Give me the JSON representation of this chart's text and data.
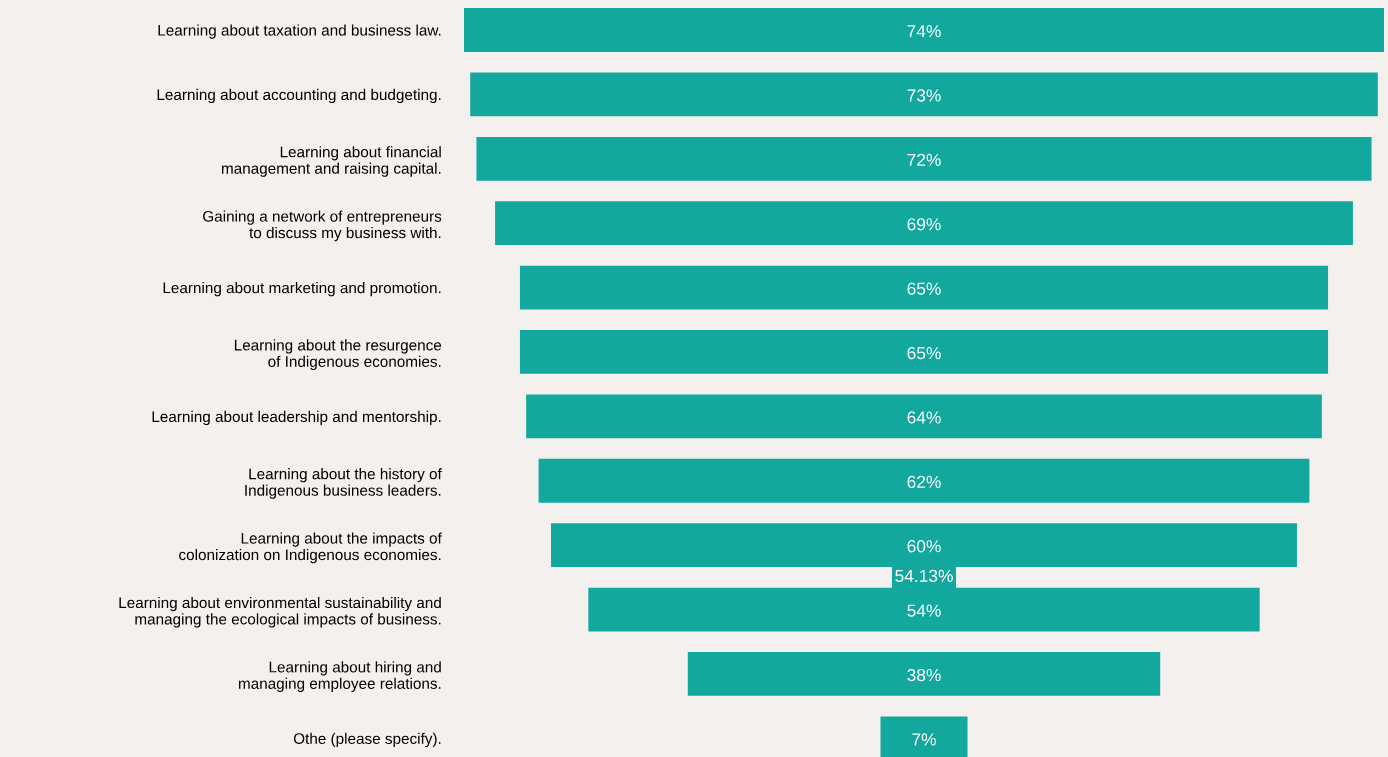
{
  "chart_data": {
    "type": "other",
    "categories": [
      "Learning about taxation and business law.",
      "Learning about accounting and budgeting.",
      "Learning about financial\nmanagement and raising capital.",
      "Gaining a network of entrepreneurs\nto discuss my business with.",
      "Learning about marketing and promotion.",
      "Learning about the resurgence\nof Indigenous economies.",
      "Learning about leadership and mentorship.",
      "Learning about the history of\nIndigenous business leaders.",
      "Learning about the impacts of\ncolonization on Indigenous economies.",
      "Learning about environmental sustainability and\nmanaging the ecological impacts of business.",
      "Learning about hiring and\nmanaging employee relations.",
      "Othe (please specify)."
    ],
    "values": [
      74,
      73,
      72,
      69,
      65,
      65,
      64,
      62,
      60,
      54,
      38,
      7
    ],
    "value_labels": [
      "74%",
      "73%",
      "72%",
      "69%",
      "65%",
      "65%",
      "64%",
      "62%",
      "60%",
      "54%",
      "38%",
      "7%"
    ],
    "color": "#13a89e",
    "annotations": [
      "54.13%"
    ]
  }
}
